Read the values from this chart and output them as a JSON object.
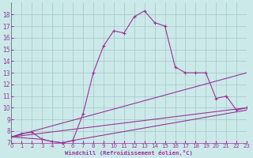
{
  "bg_color": "#cce9e9",
  "grid_color": "#aacccc",
  "line_color": "#993399",
  "marker": "+",
  "xlabel": "Windchill (Refroidissement éolien,°C)",
  "xlim": [
    0,
    23
  ],
  "ylim": [
    7,
    19
  ],
  "yticks": [
    7,
    8,
    9,
    10,
    11,
    12,
    13,
    14,
    15,
    16,
    17,
    18
  ],
  "xticks": [
    0,
    1,
    2,
    3,
    4,
    5,
    6,
    7,
    8,
    9,
    10,
    11,
    12,
    13,
    14,
    15,
    16,
    17,
    18,
    19,
    20,
    21,
    22,
    23
  ],
  "line1_x": [
    0,
    1,
    2,
    3,
    4,
    5,
    6,
    7,
    8,
    9,
    10,
    11,
    12,
    13,
    14,
    15,
    16,
    17,
    18,
    19,
    20,
    21,
    22,
    23
  ],
  "line1_y": [
    7.5,
    7.8,
    7.9,
    7.3,
    7.1,
    7.0,
    7.2,
    9.5,
    13.0,
    15.3,
    16.6,
    16.4,
    17.8,
    18.3,
    17.3,
    17.0,
    13.5,
    13.0,
    13.0,
    13.0,
    10.8,
    11.0,
    9.8,
    10.0
  ],
  "line2_x": [
    0,
    23
  ],
  "line2_y": [
    7.5,
    13.0
  ],
  "line3_x": [
    0,
    23
  ],
  "line3_y": [
    7.5,
    10.0
  ],
  "line4_x": [
    0,
    3,
    4,
    5,
    6,
    23
  ],
  "line4_y": [
    7.5,
    7.3,
    7.1,
    7.0,
    7.2,
    9.8
  ]
}
